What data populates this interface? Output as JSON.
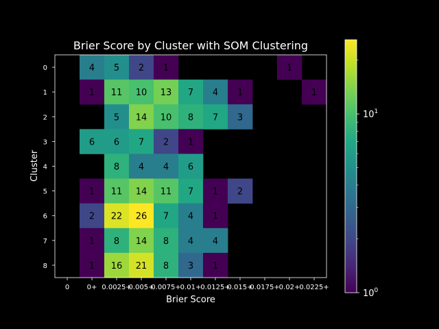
{
  "chart_data": {
    "type": "heatmap",
    "title": "Brier Score by Cluster with SOM Clustering",
    "xlabel": "Brier Score",
    "ylabel": "Cluster",
    "x_categories": [
      "0",
      "0+",
      "0.0025+",
      "0.005+",
      "0.0075+",
      "0.01+",
      "0.0125+",
      "0.015+",
      "0.0175+",
      "0.02+",
      "0.0225+"
    ],
    "y_categories": [
      "0",
      "1",
      "2",
      "3",
      "4",
      "5",
      "6",
      "7",
      "8"
    ],
    "values": [
      [
        null,
        4,
        5,
        2,
        1,
        null,
        null,
        null,
        null,
        1,
        null
      ],
      [
        null,
        1,
        11,
        10,
        13,
        7,
        4,
        1,
        null,
        null,
        1
      ],
      [
        null,
        null,
        5,
        14,
        10,
        8,
        7,
        3,
        null,
        null,
        null
      ],
      [
        null,
        6,
        6,
        7,
        2,
        1,
        null,
        null,
        null,
        null,
        null
      ],
      [
        null,
        null,
        8,
        4,
        4,
        6,
        null,
        null,
        null,
        null,
        null
      ],
      [
        null,
        1,
        11,
        14,
        11,
        7,
        1,
        2,
        null,
        null,
        null
      ],
      [
        null,
        2,
        22,
        26,
        7,
        4,
        1,
        null,
        null,
        null,
        null
      ],
      [
        null,
        1,
        8,
        14,
        8,
        4,
        4,
        null,
        null,
        null,
        null
      ],
      [
        null,
        1,
        16,
        21,
        8,
        3,
        1,
        null,
        null,
        null,
        null
      ]
    ],
    "colormap": "viridis",
    "color_scale": "log",
    "color_range": [
      1,
      26
    ],
    "colorbar_ticks": [
      {
        "base": "10",
        "exp": "0",
        "value": 1
      },
      {
        "base": "10",
        "exp": "1",
        "value": 10
      }
    ],
    "background_color": "#000000",
    "text_color": "#000000"
  }
}
